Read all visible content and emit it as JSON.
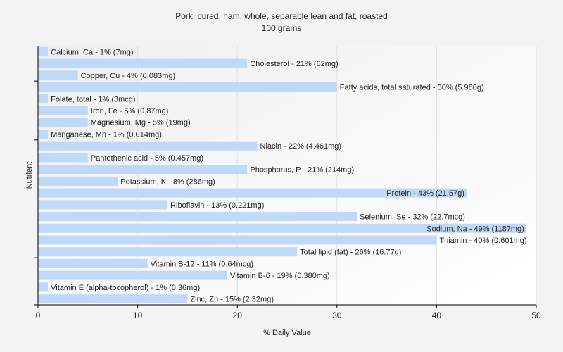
{
  "chart_data": {
    "type": "bar",
    "orientation": "horizontal",
    "title": "Pork, cured, ham, whole, separable lean and fat, roasted",
    "subtitle": "100 grams",
    "xlabel": "% Daily Value",
    "ylabel": "Nutrient",
    "xlim": [
      0,
      50
    ],
    "xticks": [
      0,
      10,
      20,
      30,
      40,
      50
    ],
    "grid": true,
    "bar_color": "#c0d9f9",
    "categories": [
      "Calcium, Ca",
      "Cholesterol",
      "Copper, Cu",
      "Fatty acids, total saturated",
      "Folate, total",
      "Iron, Fe",
      "Magnesium, Mg",
      "Manganese, Mn",
      "Niacin",
      "Pantothenic acid",
      "Phosphorus, P",
      "Potassium, K",
      "Protein",
      "Riboflavin",
      "Selenium, Se",
      "Sodium, Na",
      "Thiamin",
      "Total lipid (fat)",
      "Vitamin B-12",
      "Vitamin B-6",
      "Vitamin E (alpha-tocopherol)",
      "Zinc, Zn"
    ],
    "values": [
      1,
      21,
      4,
      30,
      1,
      5,
      5,
      1,
      22,
      5,
      21,
      8,
      43,
      13,
      32,
      49,
      40,
      26,
      11,
      19,
      1,
      15
    ],
    "labels": [
      "Calcium, Ca - 1% (7mg)",
      "Cholesterol - 21% (62mg)",
      "Copper, Cu - 4% (0.083mg)",
      "Fatty acids, total saturated - 30% (5.980g)",
      "Folate, total - 1% (3mcg)",
      "Iron, Fe - 5% (0.87mg)",
      "Magnesium, Mg - 5% (19mg)",
      "Manganese, Mn - 1% (0.014mg)",
      "Niacin - 22% (4.461mg)",
      "Pantothenic acid - 5% (0.457mg)",
      "Phosphorus, P - 21% (214mg)",
      "Potassium, K - 8% (286mg)",
      "Protein - 43% (21.57g)",
      "Riboflavin - 13% (0.221mg)",
      "Selenium, Se - 32% (22.7mcg)",
      "Sodium, Na - 49% (1187mg)",
      "Thiamin - 40% (0.601mg)",
      "Total lipid (fat) - 26% (16.77g)",
      "Vitamin B-12 - 11% (0.64mcg)",
      "Vitamin B-6 - 19% (0.380mg)",
      "Vitamin E (alpha-tocopherol) - 1% (0.36mg)",
      "Zinc, Zn - 15% (2.32mg)"
    ]
  }
}
